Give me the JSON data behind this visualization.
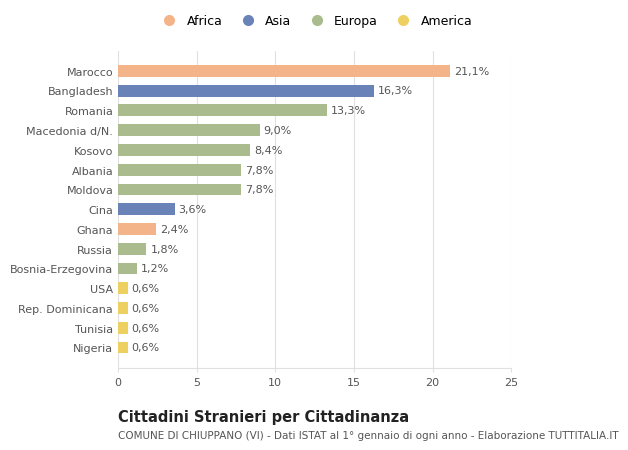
{
  "categories": [
    "Marocco",
    "Bangladesh",
    "Romania",
    "Macedonia d/N.",
    "Kosovo",
    "Albania",
    "Moldova",
    "Cina",
    "Ghana",
    "Russia",
    "Bosnia-Erzegovina",
    "USA",
    "Rep. Dominicana",
    "Tunisia",
    "Nigeria"
  ],
  "values": [
    21.1,
    16.3,
    13.3,
    9.0,
    8.4,
    7.8,
    7.8,
    3.6,
    2.4,
    1.8,
    1.2,
    0.6,
    0.6,
    0.6,
    0.6
  ],
  "labels": [
    "21,1%",
    "16,3%",
    "13,3%",
    "9,0%",
    "8,4%",
    "7,8%",
    "7,8%",
    "3,6%",
    "2,4%",
    "1,8%",
    "1,2%",
    "0,6%",
    "0,6%",
    "0,6%",
    "0,6%"
  ],
  "bar_colors": [
    "#F4B48A",
    "#6982B8",
    "#AABB8E",
    "#AABB8E",
    "#AABB8E",
    "#AABB8E",
    "#AABB8E",
    "#6982B8",
    "#F4B48A",
    "#AABB8E",
    "#AABB8E",
    "#EDD060",
    "#EDD060",
    "#EDD060",
    "#EDD060"
  ],
  "legend_labels": [
    "Africa",
    "Asia",
    "Europa",
    "America"
  ],
  "legend_colors": [
    "#F4B48A",
    "#6982B8",
    "#AABB8E",
    "#EDD060"
  ],
  "title": "Cittadini Stranieri per Cittadinanza",
  "subtitle": "COMUNE DI CHIUPPANO (VI) - Dati ISTAT al 1° gennaio di ogni anno - Elaborazione TUTTITALIA.IT",
  "xlim": [
    0,
    25
  ],
  "xticks": [
    0,
    5,
    10,
    15,
    20,
    25
  ],
  "background_color": "#ffffff",
  "grid_color": "#e0e0e0",
  "bar_height": 0.6,
  "title_fontsize": 10.5,
  "subtitle_fontsize": 7.5,
  "tick_fontsize": 8,
  "label_fontsize": 8,
  "legend_fontsize": 9
}
